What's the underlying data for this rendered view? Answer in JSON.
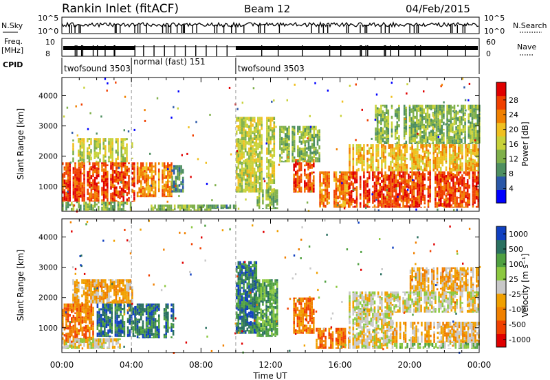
{
  "header": {
    "station": "Rankin Inlet (fitACF)",
    "beam": "Beam 12",
    "date": "04/Feb/2015"
  },
  "noise_panel": {
    "left_label": "N.Sky",
    "right_label": "N.Search",
    "ticks_left": [
      "10^5",
      "10^0"
    ],
    "ticks_right": [
      "10^5",
      "10^0"
    ]
  },
  "freq_panel": {
    "left_label_line1": "Freq.",
    "left_label_line2": "[MHz]",
    "right_label": "Nave",
    "ticks_left": [
      "10",
      "8"
    ],
    "ticks_right": [
      "60",
      "0"
    ]
  },
  "cpid": {
    "label": "CPID",
    "segments": [
      {
        "name": "twofsound 3503",
        "start_h": 0.0,
        "end_h": 4.0
      },
      {
        "name": "normal (fast) 151",
        "start_h": 4.0,
        "end_h": 10.0
      },
      {
        "name": "twofsound 3503",
        "start_h": 10.0,
        "end_h": 24.0
      }
    ]
  },
  "colors": {
    "power": [
      "#0000ff",
      "#2a57a8",
      "#4e8f60",
      "#7fb04a",
      "#c8d23a",
      "#f0c020",
      "#f08000",
      "#f04000",
      "#e00000"
    ],
    "velocity": [
      "#e00000",
      "#f04000",
      "#f08000",
      "#f0a000",
      "#c8c8c8",
      "#8cc840",
      "#4fa040",
      "#2a7060",
      "#1040c0"
    ]
  },
  "chart_data": [
    {
      "type": "heatmap",
      "name": "power",
      "xlabel": "",
      "ylabel": "Slant Range [km]",
      "x_range_h": [
        0,
        24
      ],
      "ylim_km": [
        180,
        4600
      ],
      "yticks": [
        1000,
        2000,
        3000,
        4000
      ],
      "colorbar": {
        "label": "Power [dB]",
        "ticks": [
          "4",
          "8",
          "12",
          "16",
          "20",
          "24",
          "28"
        ],
        "range": [
          0,
          30
        ]
      },
      "regions": [
        {
          "t0": 0.0,
          "t1": 4.2,
          "r0": 500,
          "r1": 1800,
          "v": 26
        },
        {
          "t0": 0.0,
          "t1": 4.0,
          "r0": 200,
          "r1": 500,
          "v": 12
        },
        {
          "t0": 4.2,
          "t1": 6.3,
          "r0": 650,
          "r1": 1800,
          "v": 22
        },
        {
          "t0": 6.3,
          "t1": 7.0,
          "r0": 800,
          "r1": 1700,
          "v": 8
        },
        {
          "t0": 0.6,
          "t1": 4.0,
          "r0": 1800,
          "r1": 2600,
          "v": 16
        },
        {
          "t0": 5.0,
          "t1": 8.5,
          "r0": 200,
          "r1": 400,
          "v": 10
        },
        {
          "t0": 8.5,
          "t1": 10.0,
          "r0": 250,
          "r1": 400,
          "v": 6
        },
        {
          "t0": 10.0,
          "t1": 12.2,
          "r0": 800,
          "r1": 3300,
          "v": 14
        },
        {
          "t0": 11.2,
          "t1": 12.4,
          "r0": 250,
          "r1": 900,
          "v": 10
        },
        {
          "t0": 13.3,
          "t1": 14.5,
          "r0": 800,
          "r1": 1900,
          "v": 26
        },
        {
          "t0": 12.5,
          "t1": 14.8,
          "r0": 1800,
          "r1": 3000,
          "v": 12
        },
        {
          "t0": 14.8,
          "t1": 16.5,
          "r0": 300,
          "r1": 1500,
          "v": 24
        },
        {
          "t0": 16.5,
          "t1": 24.0,
          "r0": 300,
          "r1": 1500,
          "v": 27
        },
        {
          "t0": 16.5,
          "t1": 24.0,
          "r0": 1500,
          "r1": 2400,
          "v": 17
        },
        {
          "t0": 18.0,
          "t1": 24.0,
          "r0": 2400,
          "r1": 3700,
          "v": 12
        }
      ]
    },
    {
      "type": "heatmap",
      "name": "velocity",
      "xlabel": "Time UT",
      "ylabel": "Slant Range [km]",
      "x_range_h": [
        0,
        24
      ],
      "xticks": [
        "00:00",
        "04:00",
        "08:00",
        "12:00",
        "16:00",
        "20:00",
        "00:00"
      ],
      "ylim_km": [
        180,
        4600
      ],
      "yticks": [
        1000,
        2000,
        3000,
        4000
      ],
      "colorbar": {
        "label": "Velocity [m s⁻¹]",
        "ticks": [
          "-1000",
          "-500",
          "-100",
          "-25",
          "25",
          "100",
          "500",
          "1000"
        ]
      },
      "regions": [
        {
          "t0": 0.0,
          "t1": 2.0,
          "r0": 500,
          "r1": 1800,
          "v": 2
        },
        {
          "t0": 2.0,
          "t1": 4.2,
          "r0": 700,
          "r1": 1800,
          "v": 7
        },
        {
          "t0": 4.2,
          "t1": 6.4,
          "r0": 650,
          "r1": 1800,
          "v": 7
        },
        {
          "t0": 0.0,
          "t1": 3.5,
          "r0": 300,
          "r1": 650,
          "v": 4
        },
        {
          "t0": 0.6,
          "t1": 4.0,
          "r0": 1800,
          "r1": 2600,
          "v": 3
        },
        {
          "t0": 10.0,
          "t1": 11.2,
          "r0": 800,
          "r1": 3200,
          "v": 7
        },
        {
          "t0": 11.2,
          "t1": 12.4,
          "r0": 700,
          "r1": 2600,
          "v": 6
        },
        {
          "t0": 13.3,
          "t1": 14.6,
          "r0": 800,
          "r1": 2000,
          "v": 2
        },
        {
          "t0": 14.6,
          "t1": 16.5,
          "r0": 300,
          "r1": 1000,
          "v": 2
        },
        {
          "t0": 16.5,
          "t1": 19.0,
          "r0": 300,
          "r1": 1500,
          "v": 4
        },
        {
          "t0": 19.0,
          "t1": 24.0,
          "r0": 500,
          "r1": 1200,
          "v": 3
        },
        {
          "t0": 19.0,
          "t1": 24.0,
          "r0": 300,
          "r1": 500,
          "v": 5
        },
        {
          "t0": 16.5,
          "t1": 24.0,
          "r0": 1500,
          "r1": 2200,
          "v": 4
        },
        {
          "t0": 20.0,
          "t1": 24.0,
          "r0": 2200,
          "r1": 3000,
          "v": 3
        }
      ]
    }
  ]
}
